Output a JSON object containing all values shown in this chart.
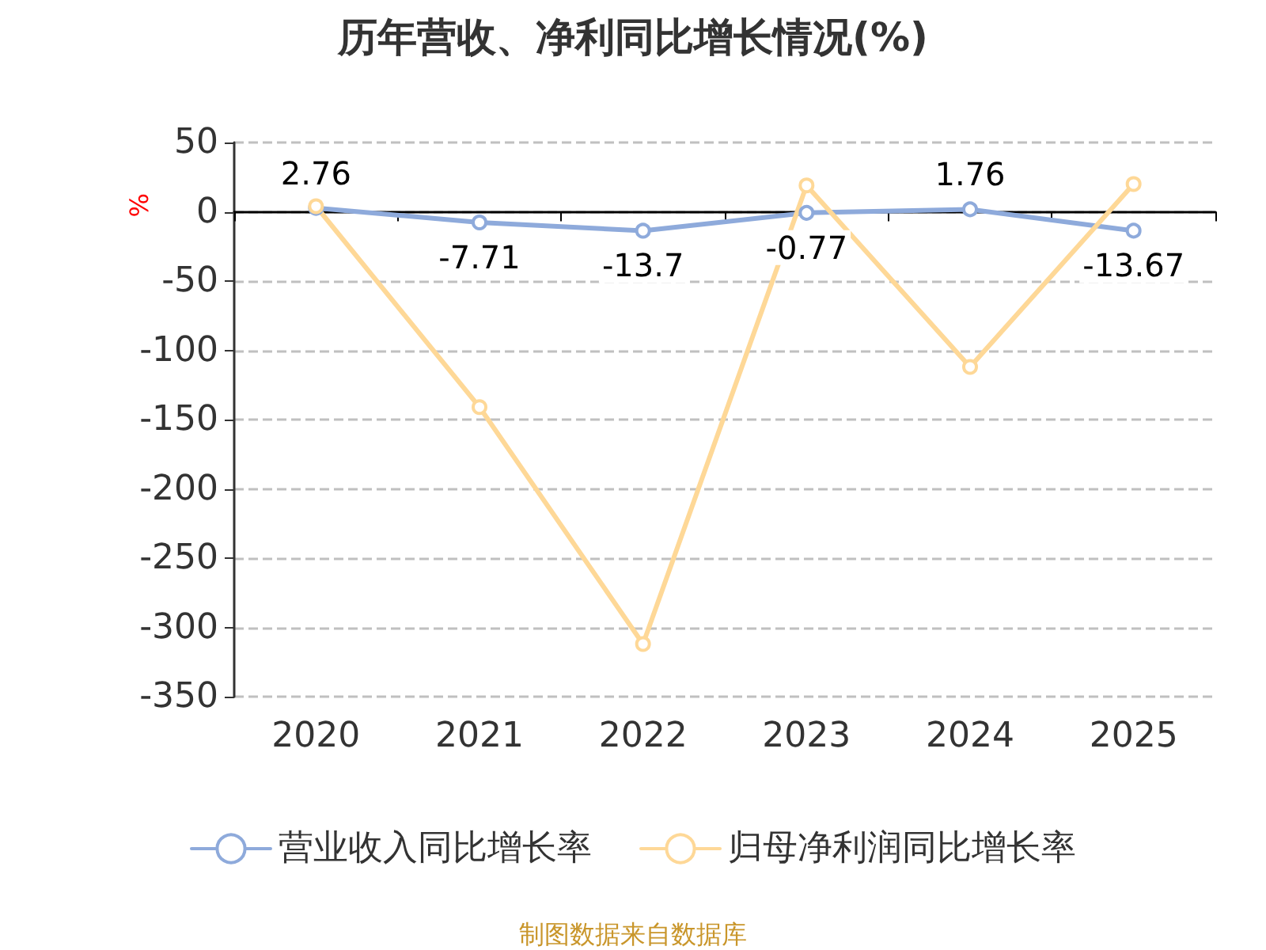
{
  "chart_data": {
    "type": "line",
    "title": "历年营收、净利同比增长情况(%)",
    "ylabel": "%",
    "categories": [
      "2020",
      "2021",
      "2022",
      "2023",
      "2024",
      "2025"
    ],
    "series": [
      {
        "name": "营业收入同比增长率",
        "color": "#8eaadb",
        "values": [
          2.76,
          -7.71,
          -13.7,
          -0.77,
          1.76,
          -13.67
        ],
        "value_labels": [
          "2.76",
          "-7.71",
          "-13.7",
          "-0.77",
          "1.76",
          "-13.67"
        ]
      },
      {
        "name": "归母净利润同比增长率",
        "color": "#fed897",
        "values": [
          4,
          -141,
          -312,
          19,
          -112,
          20
        ]
      }
    ],
    "ylim": [
      -350,
      50
    ],
    "yticks": [
      -350,
      -300,
      -250,
      -200,
      -150,
      -100,
      -50,
      0,
      50
    ],
    "grid": "y",
    "legend": "bottom",
    "marker": "circle",
    "line_style": "solid",
    "annotations": [
      "制图数据来自数据库"
    ]
  }
}
